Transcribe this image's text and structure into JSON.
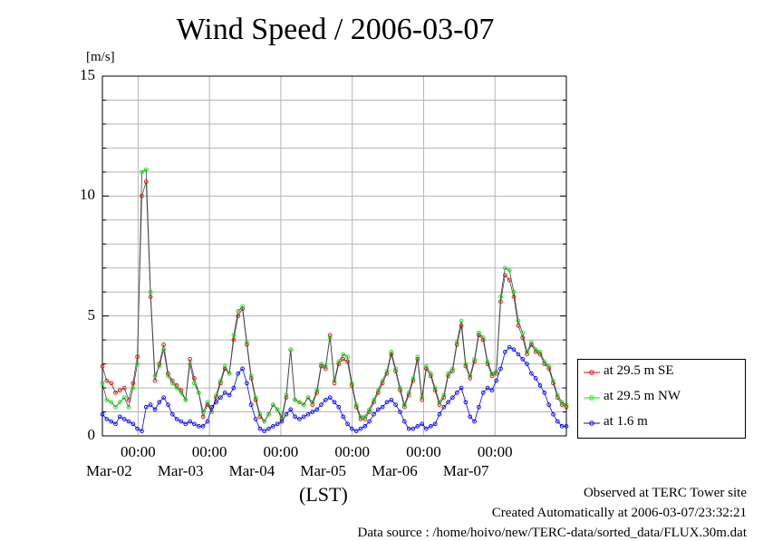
{
  "title": "Wind Speed / 2006-03-07",
  "footer": {
    "line1": "Observed at TERC Tower site",
    "line2": "Created Automatically at 2006-03-07/23:32:21",
    "line3": "Data source : /home/hoivo/new/TERC-data/sorted_data/FLUX.30m.dat"
  },
  "chart_data": {
    "type": "line",
    "title": "Wind Speed / 2006-03-07",
    "ylabel": "[m/s]",
    "xlabel": "(LST)",
    "ylim": [
      0,
      15
    ],
    "yticks": [
      "0",
      "5",
      "10",
      "15"
    ],
    "xticks": [
      {
        "time": "00:00",
        "date": "Mar-02"
      },
      {
        "time": "00:00",
        "date": "Mar-03"
      },
      {
        "time": "00:00",
        "date": "Mar-04"
      },
      {
        "time": "00:00",
        "date": "Mar-05"
      },
      {
        "time": "00:00",
        "date": "Mar-06"
      },
      {
        "time": "00:00",
        "date": "Mar-07"
      }
    ],
    "x_range": [
      "2006-03-01 12:00",
      "2006-03-08 00:00"
    ],
    "grid": true,
    "legend_position": "right",
    "series": [
      {
        "name": "at 29.5 m SE",
        "color": "#ff0000",
        "values": [
          2.9,
          2.3,
          2.2,
          1.8,
          1.9,
          2.0,
          1.5,
          2.2,
          3.3,
          10.0,
          10.6,
          5.8,
          2.3,
          3.0,
          3.8,
          2.6,
          2.3,
          2.1,
          1.9,
          1.5,
          3.2,
          2.4,
          1.8,
          0.8,
          1.3,
          1.0,
          1.6,
          2.2,
          2.8,
          2.6,
          4.0,
          5.0,
          5.3,
          3.8,
          2.4,
          1.5,
          0.8,
          0.6,
          0.9,
          1.3,
          1.1,
          0.7,
          1.6,
          3.6,
          1.5,
          1.4,
          1.3,
          1.6,
          1.3,
          1.8,
          2.9,
          2.8,
          4.2,
          2.2,
          3.0,
          3.2,
          3.1,
          2.1,
          1.2,
          0.7,
          0.7,
          1.0,
          1.4,
          1.8,
          2.2,
          2.6,
          3.4,
          2.7,
          1.9,
          1.2,
          1.7,
          2.3,
          3.2,
          1.5,
          2.8,
          2.5,
          1.9,
          1.3,
          1.6,
          2.5,
          2.7,
          3.8,
          4.6,
          2.9,
          2.4,
          3.1,
          4.2,
          4.0,
          3.0,
          2.5,
          2.6,
          5.6,
          6.7,
          6.5,
          5.8,
          4.6,
          4.1,
          3.4,
          3.8,
          3.5,
          3.4,
          3.0,
          2.8,
          2.2,
          1.6,
          1.3,
          1.2
        ],
        "pattern": "c"
      },
      {
        "name": "at 29.5 m NW",
        "color": "#00ee00",
        "values": [
          2.2,
          1.5,
          1.4,
          1.2,
          1.4,
          1.6,
          1.2,
          2.0,
          3.0,
          11.0,
          11.1,
          6.0,
          2.5,
          2.9,
          3.6,
          2.5,
          2.2,
          2.0,
          1.8,
          1.5,
          3.0,
          2.2,
          1.8,
          1.0,
          1.4,
          1.0,
          1.7,
          2.3,
          2.9,
          2.6,
          4.2,
          5.2,
          5.4,
          3.9,
          2.5,
          1.6,
          0.9,
          0.6,
          0.9,
          1.3,
          1.1,
          0.8,
          1.7,
          3.6,
          1.5,
          1.4,
          1.3,
          1.6,
          1.4,
          1.9,
          3.0,
          2.9,
          4.1,
          2.3,
          3.1,
          3.4,
          3.3,
          2.2,
          1.3,
          0.8,
          0.8,
          1.1,
          1.5,
          1.9,
          2.3,
          2.7,
          3.5,
          2.8,
          2.0,
          1.3,
          1.8,
          2.4,
          3.3,
          1.6,
          2.9,
          2.6,
          2.0,
          1.4,
          1.7,
          2.6,
          2.8,
          3.9,
          4.8,
          3.0,
          2.5,
          3.2,
          4.3,
          4.1,
          3.1,
          2.6,
          2.7,
          5.8,
          7.0,
          6.9,
          6.0,
          4.8,
          4.3,
          3.5,
          3.9,
          3.6,
          3.5,
          3.1,
          2.9,
          2.3,
          1.7,
          1.4,
          1.3
        ]
      },
      {
        "name": "at 1.6 m",
        "color": "#0000ff",
        "values": [
          0.9,
          0.7,
          0.6,
          0.5,
          0.8,
          0.7,
          0.6,
          0.5,
          0.3,
          0.2,
          1.2,
          1.3,
          1.1,
          1.4,
          1.6,
          1.3,
          0.9,
          0.7,
          0.6,
          0.5,
          0.6,
          0.5,
          0.4,
          0.4,
          0.6,
          1.2,
          1.4,
          1.6,
          1.8,
          1.7,
          2.0,
          2.6,
          2.8,
          2.2,
          1.3,
          0.7,
          0.3,
          0.2,
          0.3,
          0.4,
          0.5,
          0.6,
          0.9,
          1.1,
          0.8,
          0.7,
          0.8,
          0.9,
          1.0,
          1.1,
          1.3,
          1.5,
          1.6,
          1.4,
          1.2,
          0.8,
          0.5,
          0.3,
          0.2,
          0.3,
          0.4,
          0.6,
          0.9,
          1.1,
          1.2,
          1.4,
          1.5,
          1.3,
          1.0,
          0.6,
          0.3,
          0.3,
          0.4,
          0.5,
          0.3,
          0.4,
          0.5,
          0.9,
          1.2,
          1.4,
          1.6,
          1.8,
          2.0,
          1.4,
          0.8,
          0.6,
          1.2,
          1.8,
          2.0,
          1.9,
          2.3,
          2.8,
          3.5,
          3.7,
          3.6,
          3.4,
          3.2,
          3.0,
          2.6,
          2.4,
          2.1,
          1.8,
          1.3,
          0.9,
          0.6,
          0.4,
          0.4
        ]
      }
    ]
  }
}
